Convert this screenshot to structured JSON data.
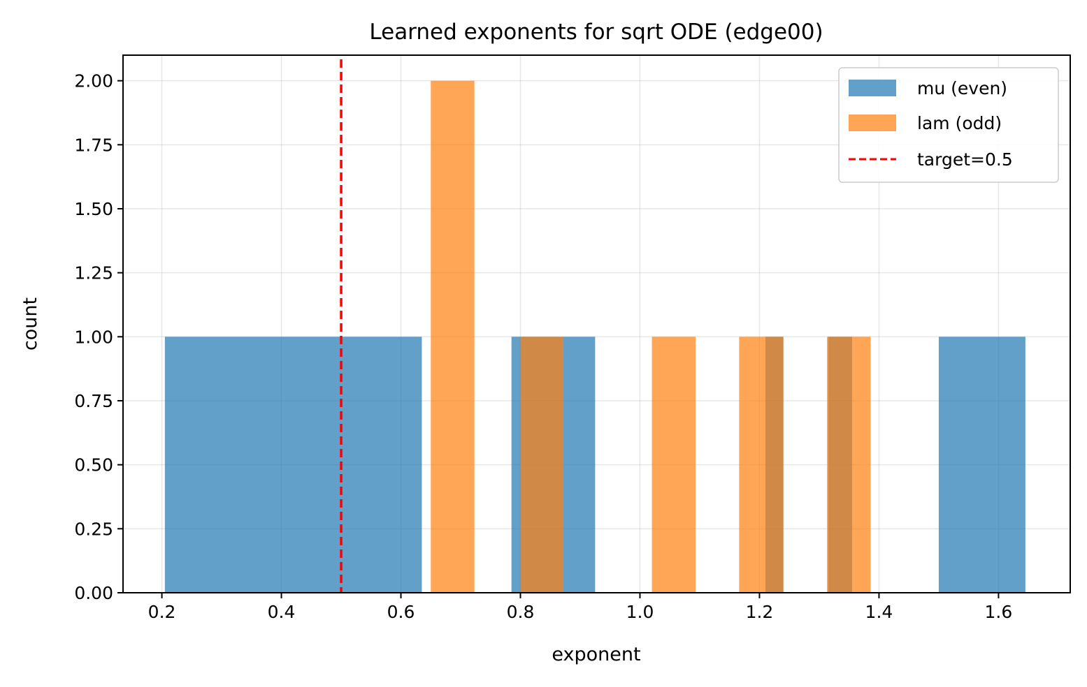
{
  "chart_data": {
    "type": "histogram",
    "title": "Learned exponents for sqrt ODE (edge00)",
    "xlabel": "exponent",
    "ylabel": "count",
    "xlim": [
      0.135,
      1.72
    ],
    "ylim": [
      0,
      2.1
    ],
    "grid": true,
    "legend_position": "top-right",
    "x_ticks": [
      0.2,
      0.4,
      0.6,
      0.8,
      1.0,
      1.2,
      1.4,
      1.6
    ],
    "x_tick_labels": [
      "0.2",
      "0.4",
      "0.6",
      "0.8",
      "1.0",
      "1.2",
      "1.4",
      "1.6"
    ],
    "y_ticks": [
      0,
      0.25,
      0.5,
      0.75,
      1.0,
      1.25,
      1.5,
      1.75,
      2.0
    ],
    "y_tick_labels": [
      "0.00",
      "0.25",
      "0.50",
      "0.75",
      "1.00",
      "1.25",
      "1.50",
      "1.75",
      "2.00"
    ],
    "series": [
      {
        "name": "mu (even)",
        "color": "#1f77b4",
        "opacity": 0.7,
        "bins": [
          {
            "x0": 0.205,
            "x1": 0.635,
            "count": 1
          },
          {
            "x0": 0.785,
            "x1": 0.925,
            "count": 1
          },
          {
            "x0": 1.21,
            "x1": 1.24,
            "count": 1
          },
          {
            "x0": 1.315,
            "x1": 1.355,
            "count": 1
          },
          {
            "x0": 1.5,
            "x1": 1.645,
            "count": 1
          }
        ]
      },
      {
        "name": "lam (odd)",
        "color": "#ff7f0e",
        "opacity": 0.7,
        "bins": [
          {
            "x0": 0.65,
            "x1": 0.723,
            "count": 2
          },
          {
            "x0": 0.8,
            "x1": 0.872,
            "count": 1
          },
          {
            "x0": 1.02,
            "x1": 1.093,
            "count": 1
          },
          {
            "x0": 1.166,
            "x1": 1.24,
            "count": 1
          },
          {
            "x0": 1.313,
            "x1": 1.386,
            "count": 1
          }
        ]
      }
    ],
    "reference_line": {
      "name": "target=0.5",
      "x": 0.5,
      "color": "#ff0000",
      "style": "dashed"
    }
  }
}
